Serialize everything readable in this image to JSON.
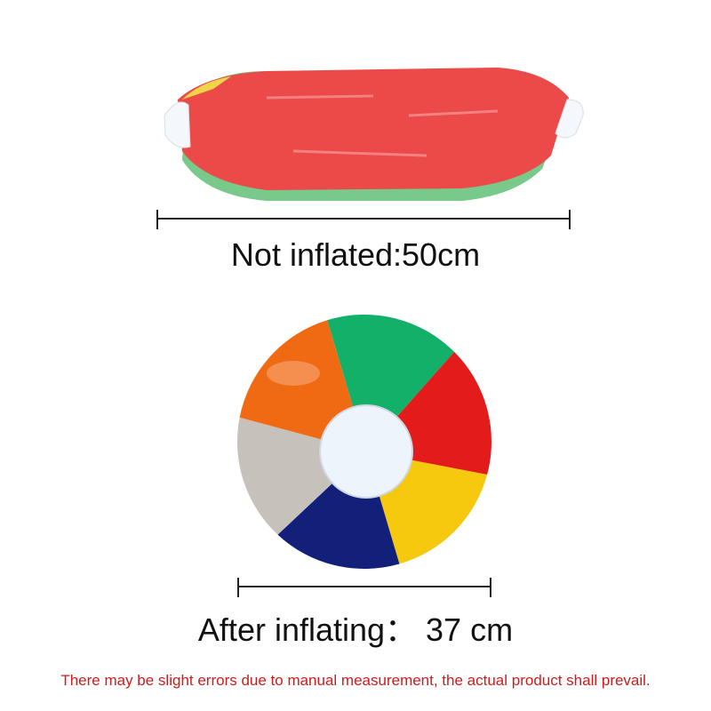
{
  "labels": {
    "not_inflated": "Not inflated:50cm",
    "after_inflating": "After inflating： 37 cm",
    "disclaimer": "There may be slight errors due to manual measurement, the actual product shall prevail."
  },
  "colors": {
    "deflated_red": "#ec4a48",
    "disclaimer_red": "#d21a1a",
    "panels": [
      "#13b06a",
      "#e31b1b",
      "#f6c90e",
      "#12207a",
      "#c7c1bc",
      "#f06a14"
    ],
    "cap": "#eef4fb"
  }
}
